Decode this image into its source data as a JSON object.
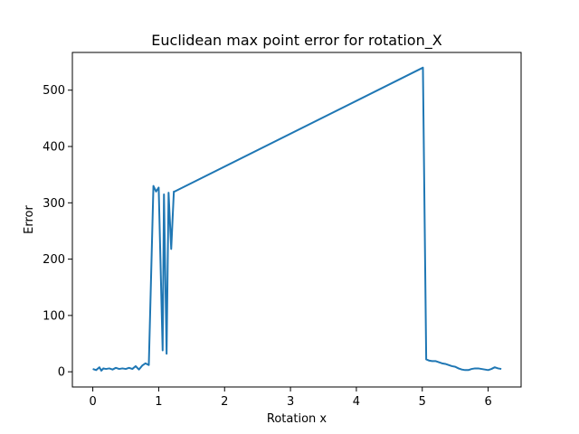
{
  "chart_data": {
    "type": "line",
    "title": "Euclidean max point error for rotation_X",
    "xlabel": "Rotation x",
    "ylabel": "Error",
    "xlim": [
      -0.31,
      6.5
    ],
    "ylim": [
      -27,
      567
    ],
    "xticks": [
      0,
      1,
      2,
      3,
      4,
      5,
      6
    ],
    "yticks": [
      0,
      100,
      200,
      300,
      400,
      500
    ],
    "grid": false,
    "series": [
      {
        "color": "#1f77b4",
        "x": [
          0.0,
          0.05,
          0.1,
          0.13,
          0.16,
          0.2,
          0.25,
          0.3,
          0.35,
          0.4,
          0.45,
          0.5,
          0.55,
          0.6,
          0.65,
          0.7,
          0.75,
          0.8,
          0.85,
          0.92,
          0.96,
          1.0,
          1.06,
          1.08,
          1.12,
          1.15,
          1.19,
          1.23,
          1.24,
          5.01,
          5.06,
          5.1,
          5.15,
          5.2,
          5.25,
          5.3,
          5.35,
          5.4,
          5.45,
          5.5,
          5.55,
          5.6,
          5.65,
          5.7,
          5.75,
          5.8,
          5.85,
          5.9,
          5.95,
          6.0,
          6.05,
          6.1,
          6.15,
          6.2
        ],
        "y": [
          5,
          3,
          8,
          2,
          6,
          5,
          6,
          4,
          7,
          5,
          6,
          5,
          7,
          5,
          10,
          4,
          11,
          15,
          12,
          330,
          320,
          327,
          38,
          315,
          32,
          318,
          218,
          320,
          320,
          540,
          22,
          20,
          19,
          19,
          17,
          15,
          14,
          12,
          10,
          9,
          6,
          4,
          3,
          3,
          5,
          6,
          6,
          5,
          4,
          3,
          5,
          8,
          6,
          5
        ]
      }
    ]
  }
}
